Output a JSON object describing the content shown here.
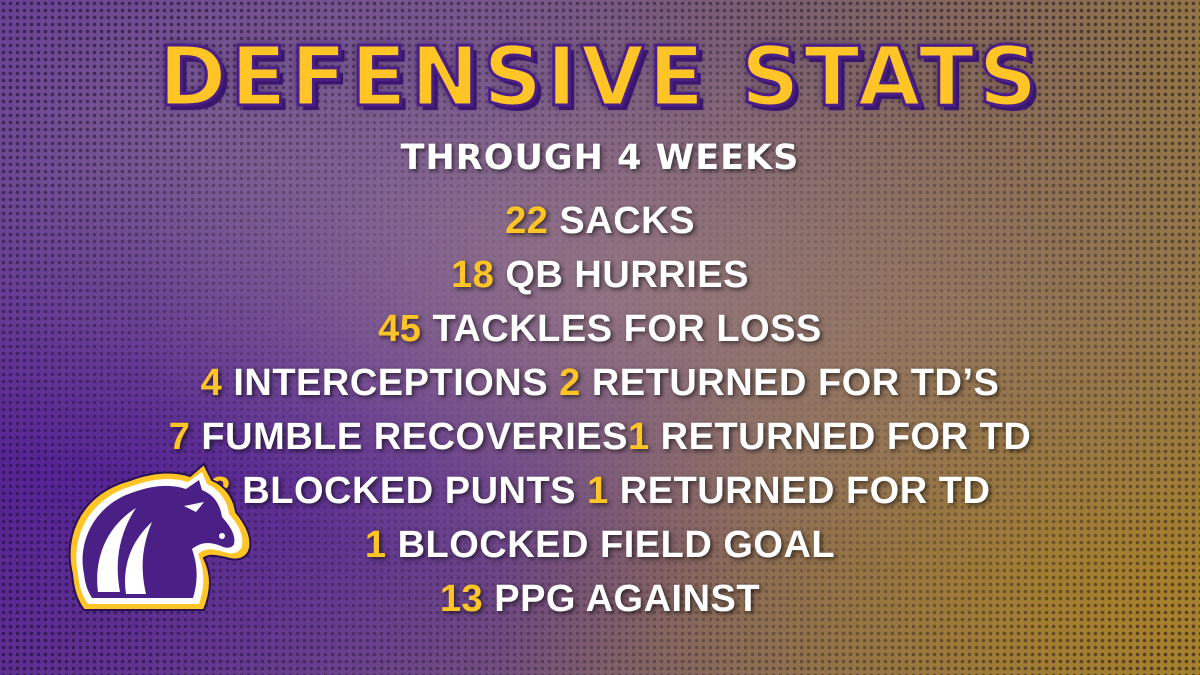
{
  "title": "DEFENSIVE STATS",
  "subtitle": "THROUGH 4 WEEKS",
  "colors": {
    "accent": "#ffc425",
    "purple": "#4a1f86",
    "text": "#ffffff"
  },
  "logo_icon": "bronco-horse-head-logo",
  "stats": [
    {
      "num1": "22",
      "text1": "SACKS",
      "num2": "",
      "text2": ""
    },
    {
      "num1": "18",
      "text1": "QB HURRIES",
      "num2": "",
      "text2": ""
    },
    {
      "num1": "45",
      "text1": "TACKLES FOR LOSS",
      "num2": "",
      "text2": ""
    },
    {
      "num1": "4",
      "text1": "INTERCEPTIONS",
      "num2": "2",
      "text2": "RETURNED FOR TD’S"
    },
    {
      "num1": "7",
      "text1": "FUMBLE RECOVERIES",
      "num2": "1",
      "text2": "RETURNED FOR TD"
    },
    {
      "num1": "3",
      "text1": "BLOCKED PUNTS",
      "num2": "1",
      "text2": "RETURNED FOR TD"
    },
    {
      "num1": "1",
      "text1": "BLOCKED FIELD GOAL",
      "num2": "",
      "text2": ""
    },
    {
      "num1": "13",
      "text1": "PPG AGAINST",
      "num2": "",
      "text2": ""
    }
  ]
}
